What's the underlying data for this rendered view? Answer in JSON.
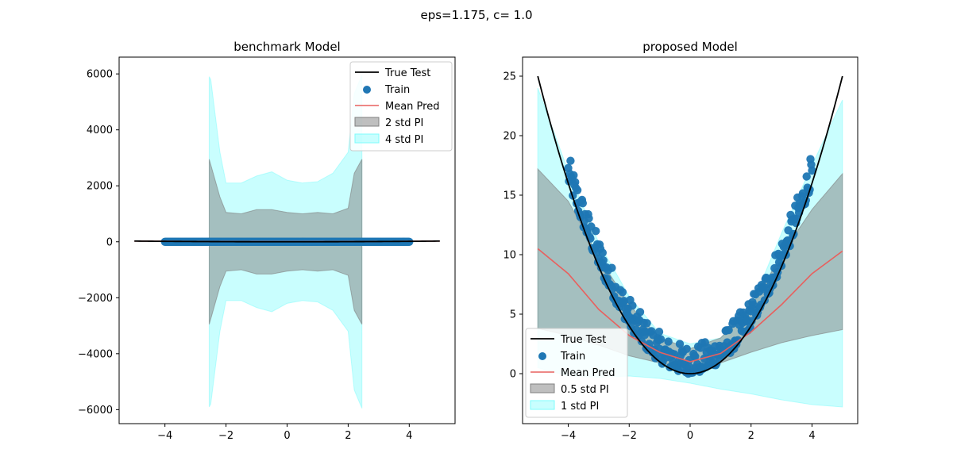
{
  "figure": {
    "suptitle": "eps=1.175, c= 1.0"
  },
  "colors": {
    "true_test": "#000000",
    "train": "#1f77b4",
    "mean_pred": "#e8605e",
    "inner_band": "#808080",
    "outer_band": "#7ffcfc"
  },
  "chart_data": [
    {
      "type": "line",
      "title": "benchmark Model",
      "xlabel": "",
      "ylabel": "",
      "xlim": [
        -5.5,
        5.5
      ],
      "ylim": [
        -6500,
        6600
      ],
      "xticks": [
        -4,
        -2,
        0,
        2,
        4
      ],
      "yticks": [
        -6000,
        -4000,
        -2000,
        0,
        2000,
        4000,
        6000
      ],
      "legend": {
        "position": "top-right",
        "entries": [
          {
            "key": "true",
            "label": "True Test"
          },
          {
            "key": "train",
            "label": "Train"
          },
          {
            "key": "mean",
            "label": "Mean Pred"
          },
          {
            "key": "inner",
            "label": "2 std PI"
          },
          {
            "key": "outer",
            "label": "4 std PI"
          }
        ]
      },
      "true_test": {
        "x_range": [
          -5,
          5
        ],
        "function": "x^2"
      },
      "train": {
        "x_range": [
          -4,
          4
        ],
        "y_approx": 0
      },
      "mean_pred": {
        "x": [
          -5,
          -2.5,
          0,
          2.5,
          5
        ],
        "y": [
          25,
          10,
          5,
          10,
          25
        ]
      },
      "band_x_range": [
        -2.55,
        2.45
      ],
      "inner_band_halfwidth": {
        "x": [
          -2.55,
          -2.2,
          -2.0,
          -1.5,
          -1.0,
          -0.5,
          0.0,
          0.5,
          1.0,
          1.5,
          2.0,
          2.2,
          2.45
        ],
        "y": [
          2950,
          1600,
          1050,
          1000,
          1150,
          1150,
          1050,
          1000,
          1050,
          1000,
          1200,
          2450,
          2950
        ]
      },
      "outer_band_halfwidth": {
        "x": [
          -2.55,
          -2.5,
          -2.2,
          -2.0,
          -1.5,
          -1.0,
          -0.5,
          0.0,
          0.5,
          1.0,
          1.5,
          2.0,
          2.2,
          2.45
        ],
        "y": [
          5900,
          5800,
          3200,
          2100,
          2100,
          2350,
          2500,
          2200,
          2100,
          2150,
          2450,
          3200,
          5300,
          5950
        ]
      }
    },
    {
      "type": "line",
      "title": "proposed Model",
      "xlabel": "",
      "ylabel": "",
      "xlim": [
        -5.5,
        5.5
      ],
      "ylim": [
        -4.2,
        26.6
      ],
      "xticks": [
        -4,
        -2,
        0,
        2,
        4
      ],
      "yticks": [
        0,
        5,
        10,
        15,
        20,
        25
      ],
      "legend": {
        "position": "lower-left",
        "entries": [
          {
            "key": "true",
            "label": "True Test"
          },
          {
            "key": "train",
            "label": "Train"
          },
          {
            "key": "mean",
            "label": "Mean Pred"
          },
          {
            "key": "inner",
            "label": "0.5 std PI"
          },
          {
            "key": "outer",
            "label": "1 std PI"
          }
        ]
      },
      "true_test": {
        "x_range": [
          -5,
          5
        ],
        "function": "x^2"
      },
      "train": {
        "x_range": [
          -4,
          4
        ],
        "function": "x^2 + noise",
        "noise_range": [
          0,
          2.5
        ]
      },
      "mean_pred": {
        "x": [
          -5,
          -4,
          -3,
          -2,
          -1,
          0,
          1,
          2,
          3,
          4,
          5
        ],
        "y": [
          10.5,
          8.4,
          5.4,
          3.2,
          1.8,
          1.0,
          1.7,
          3.5,
          5.8,
          8.4,
          10.3
        ]
      },
      "inner_band": {
        "x": [
          -5,
          -4,
          -3,
          -2,
          -1,
          0,
          1,
          2,
          3,
          4,
          5
        ],
        "lower": [
          3.8,
          3.2,
          2.4,
          1.5,
          0.9,
          0.5,
          0.9,
          1.8,
          2.6,
          3.2,
          3.7
        ],
        "upper": [
          17.2,
          14.5,
          9.8,
          5.8,
          3.0,
          2.1,
          3.0,
          5.6,
          10.0,
          13.8,
          16.8
        ]
      },
      "outer_band": {
        "x": [
          -5,
          -4,
          -3,
          -2,
          -1,
          0,
          1,
          2,
          3,
          4,
          5
        ],
        "lower": [
          0.5,
          -0.2,
          -0.3,
          -0.2,
          -0.4,
          -0.8,
          -1.3,
          -1.7,
          -2.2,
          -2.6,
          -2.8
        ],
        "upper": [
          24.0,
          17.0,
          11.0,
          6.5,
          3.4,
          2.5,
          3.0,
          5.6,
          11.8,
          17.5,
          23.0
        ]
      }
    }
  ]
}
